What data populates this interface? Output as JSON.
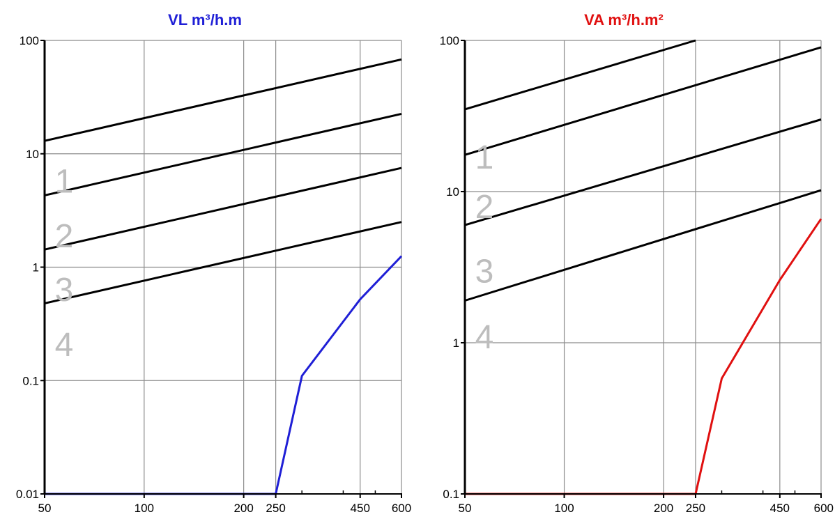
{
  "chart_data": [
    {
      "type": "line",
      "title": "VL m³/h.m",
      "title_color": "#1f1fd6",
      "x_scale": "log",
      "y_scale": "log",
      "xlim": [
        50,
        600
      ],
      "ylim": [
        0.01,
        100
      ],
      "x_tick_labels": [
        "50",
        "100",
        "200",
        "250",
        "450",
        "600"
      ],
      "x_ticks": [
        50,
        100,
        200,
        250,
        450,
        600
      ],
      "y_tick_labels": [
        "0.01",
        "0.1",
        "1",
        "10",
        "100"
      ],
      "y_ticks": [
        0.01,
        0.1,
        1,
        10,
        100
      ],
      "grid": true,
      "series": [
        {
          "x": [
            50,
            600
          ],
          "y": [
            13,
            68
          ],
          "color": "#000000"
        },
        {
          "x": [
            50,
            600
          ],
          "y": [
            4.3,
            22.5
          ],
          "color": "#000000"
        },
        {
          "x": [
            50,
            600
          ],
          "y": [
            1.43,
            7.5
          ],
          "color": "#000000"
        },
        {
          "x": [
            50,
            600
          ],
          "y": [
            0.48,
            2.5
          ],
          "color": "#000000"
        },
        {
          "x": [
            50,
            250,
            300,
            450,
            600
          ],
          "y": [
            0.01,
            0.01,
            0.11,
            0.52,
            1.25
          ],
          "color": "#1f1fd6"
        }
      ],
      "class_labels": [
        {
          "text": "1",
          "y": 5.8
        },
        {
          "text": "2",
          "y": 1.9
        },
        {
          "text": "3",
          "y": 0.64
        },
        {
          "text": "4",
          "y": 0.21
        }
      ]
    },
    {
      "type": "line",
      "title": "VA m³/h.m²",
      "title_color": "#e01010",
      "x_scale": "log",
      "y_scale": "log",
      "xlim": [
        50,
        600
      ],
      "ylim": [
        0.1,
        100
      ],
      "x_tick_labels": [
        "50",
        "100",
        "200",
        "250",
        "450",
        "600"
      ],
      "x_ticks": [
        50,
        100,
        200,
        250,
        450,
        600
      ],
      "y_tick_labels": [
        "0.1",
        "1",
        "10",
        "100"
      ],
      "y_ticks": [
        0.1,
        1,
        10,
        100
      ],
      "grid": true,
      "series": [
        {
          "x": [
            50,
            250
          ],
          "y": [
            35,
            100
          ],
          "color": "#000000"
        },
        {
          "x": [
            50,
            600
          ],
          "y": [
            17.5,
            90
          ],
          "color": "#000000"
        },
        {
          "x": [
            50,
            600
          ],
          "y": [
            6,
            30
          ],
          "color": "#000000"
        },
        {
          "x": [
            50,
            600
          ],
          "y": [
            1.9,
            10.2
          ],
          "color": "#000000"
        },
        {
          "x": [
            50,
            250,
            300,
            450,
            600
          ],
          "y": [
            0.1,
            0.1,
            0.58,
            2.6,
            6.6
          ],
          "color": "#e01010"
        }
      ],
      "class_labels": [
        {
          "text": "1",
          "y": 17
        },
        {
          "text": "2",
          "y": 8
        },
        {
          "text": "3",
          "y": 3
        },
        {
          "text": "4",
          "y": 1.1
        }
      ]
    }
  ]
}
